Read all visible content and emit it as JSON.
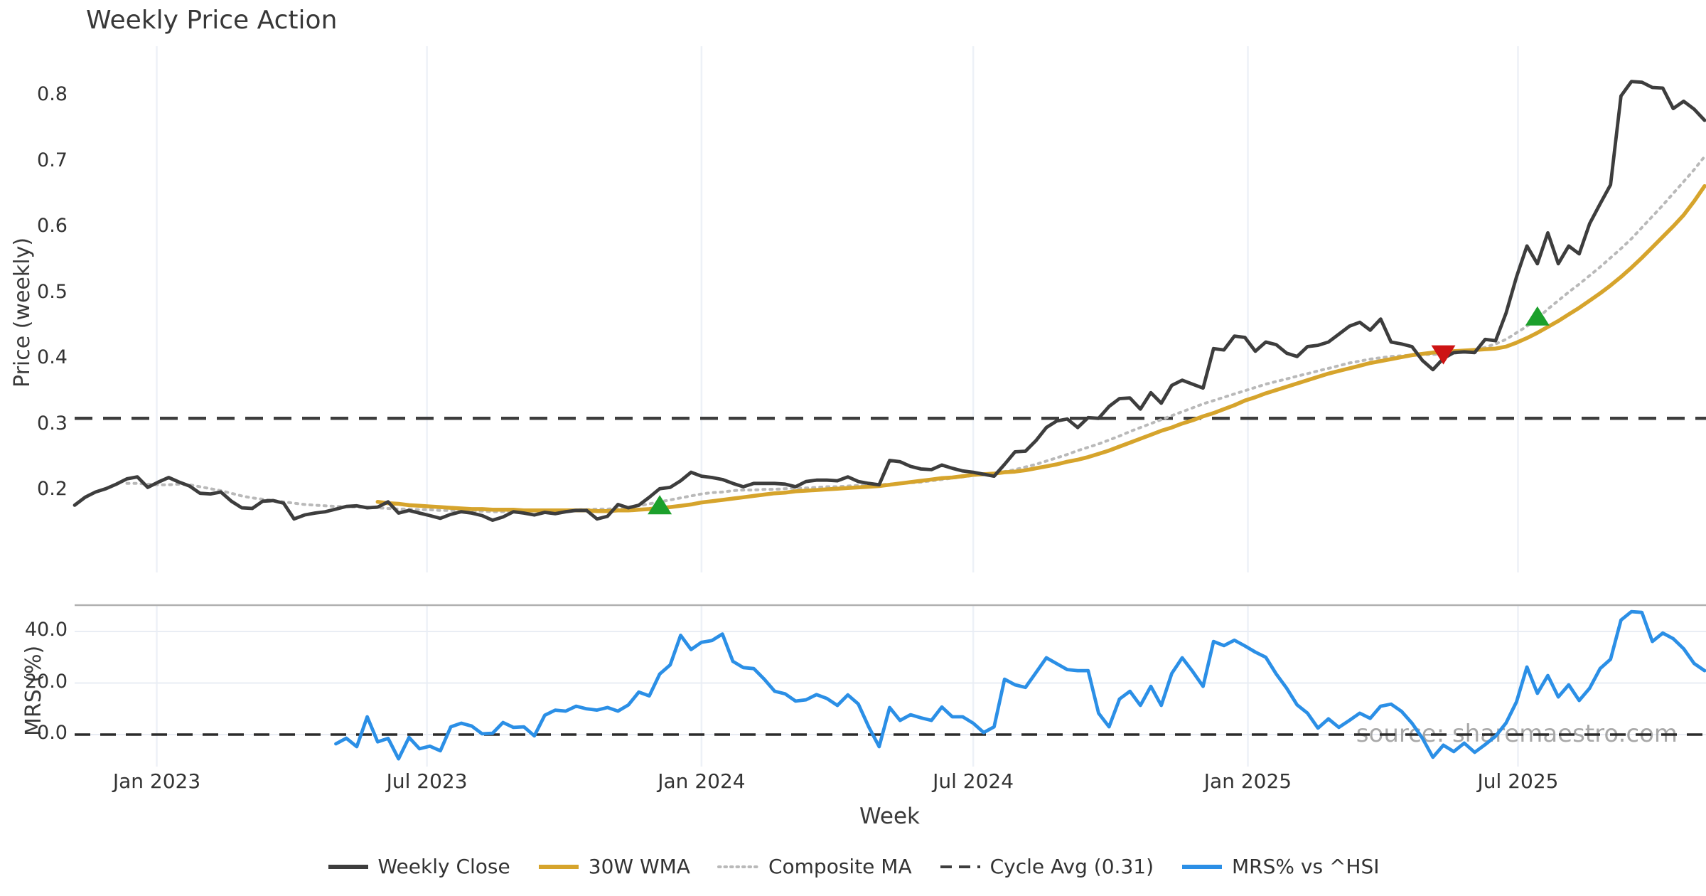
{
  "title": "Weekly Price Action",
  "watermark": "source: sharemaestro.com",
  "colors": {
    "weekly_close": "#3d3d3d",
    "wma30": "#d6a42c",
    "composite": "#b9b9b9",
    "cycle_avg": "#3d3d3d",
    "mrs": "#2b8fe6",
    "buy_marker": "#1ca02c",
    "sell_marker": "#cd1414",
    "grid_vertical": "#edf1f7",
    "grid_horizontal": "#e9edf4",
    "panel_spine": "#b0b0b0",
    "watermark_text": "#999999"
  },
  "legend": [
    {
      "label": "Weekly Close",
      "color": "#3d3d3d",
      "style": "solid",
      "width": 6
    },
    {
      "label": "30W WMA",
      "color": "#d6a42c",
      "style": "solid",
      "width": 6
    },
    {
      "label": "Composite MA",
      "color": "#b9b9b9",
      "style": "dotted",
      "width": 4
    },
    {
      "label": "Cycle Avg (0.31)",
      "color": "#3d3d3d",
      "style": "dashed",
      "width": 4
    },
    {
      "label": "MRS% vs ^HSI",
      "color": "#2b8fe6",
      "style": "solid",
      "width": 6
    }
  ],
  "xlabel": "Week",
  "xticks": [
    {
      "label": "Jan 2023",
      "week": 7.857
    },
    {
      "label": "Jul 2023",
      "week": 33.714
    },
    {
      "label": "Jan 2024",
      "week": 60.0
    },
    {
      "label": "Jul 2024",
      "week": 86.0
    },
    {
      "label": "Jan 2025",
      "week": 112.286
    },
    {
      "label": "Jul 2025",
      "week": 138.143
    }
  ],
  "chart_data": [
    {
      "type": "line",
      "panel": "price",
      "title": "Weekly Price Action",
      "ylabel": "Price (weekly)",
      "yticks": [
        0.8,
        0.7,
        0.6,
        0.5,
        0.4,
        0.3,
        0.2
      ],
      "ylim": [
        0.08,
        0.87
      ],
      "x_unit": "week-index 0..156 (weekly data, ~Nov 2022 to ~Nov 2025)",
      "grid": "vertical-only",
      "series": [
        {
          "name": "Weekly Close",
          "values": [
            0.178,
            0.19,
            0.198,
            0.203,
            0.21,
            0.218,
            0.221,
            0.205,
            0.213,
            0.22,
            0.213,
            0.207,
            0.196,
            0.195,
            0.198,
            0.184,
            0.174,
            0.173,
            0.184,
            0.185,
            0.181,
            0.157,
            0.163,
            0.166,
            0.168,
            0.172,
            0.176,
            0.177,
            0.174,
            0.175,
            0.183,
            0.166,
            0.17,
            0.166,
            0.162,
            0.158,
            0.164,
            0.168,
            0.166,
            0.162,
            0.155,
            0.16,
            0.168,
            0.166,
            0.163,
            0.167,
            0.165,
            0.168,
            0.17,
            0.17,
            0.157,
            0.161,
            0.179,
            0.174,
            0.178,
            0.19,
            0.203,
            0.205,
            0.215,
            0.228,
            0.222,
            0.22,
            0.217,
            0.211,
            0.206,
            0.211,
            0.211,
            0.211,
            0.21,
            0.206,
            0.214,
            0.216,
            0.216,
            0.215,
            0.221,
            0.214,
            0.211,
            0.209,
            0.246,
            0.244,
            0.237,
            0.233,
            0.232,
            0.239,
            0.234,
            0.23,
            0.228,
            0.225,
            0.222,
            0.24,
            0.259,
            0.26,
            0.276,
            0.296,
            0.306,
            0.309,
            0.296,
            0.311,
            0.31,
            0.328,
            0.34,
            0.341,
            0.324,
            0.349,
            0.333,
            0.36,
            0.368,
            0.362,
            0.356,
            0.416,
            0.414,
            0.435,
            0.433,
            0.412,
            0.426,
            0.422,
            0.409,
            0.404,
            0.419,
            0.421,
            0.426,
            0.438,
            0.45,
            0.456,
            0.444,
            0.461,
            0.426,
            0.423,
            0.419,
            0.398,
            0.384,
            0.401,
            0.41,
            0.411,
            0.41,
            0.43,
            0.428,
            0.47,
            0.525,
            0.572,
            0.545,
            0.592,
            0.545,
            0.572,
            0.56,
            0.606,
            0.636,
            0.665,
            0.8,
            0.822,
            0.821,
            0.813,
            0.812,
            0.781,
            0.792,
            0.78,
            0.763
          ]
        },
        {
          "name": "30W WMA",
          "values": [
            null,
            null,
            null,
            null,
            null,
            null,
            null,
            null,
            null,
            null,
            null,
            null,
            null,
            null,
            null,
            null,
            null,
            null,
            null,
            null,
            null,
            null,
            null,
            null,
            null,
            null,
            null,
            null,
            null,
            0.183,
            0.181,
            0.18,
            0.178,
            0.177,
            0.176,
            0.175,
            0.174,
            0.173,
            0.172,
            0.172,
            0.171,
            0.171,
            0.171,
            0.17,
            0.17,
            0.17,
            0.17,
            0.17,
            0.17,
            0.17,
            0.169,
            0.169,
            0.17,
            0.17,
            0.171,
            0.172,
            0.174,
            0.175,
            0.177,
            0.179,
            0.182,
            0.184,
            0.186,
            0.188,
            0.19,
            0.192,
            0.194,
            0.196,
            0.197,
            0.199,
            0.2,
            0.201,
            0.202,
            0.203,
            0.204,
            0.205,
            0.206,
            0.207,
            0.209,
            0.211,
            0.213,
            0.215,
            0.217,
            0.219,
            0.22,
            0.222,
            0.224,
            0.225,
            0.226,
            0.228,
            0.229,
            0.231,
            0.234,
            0.237,
            0.24,
            0.244,
            0.247,
            0.251,
            0.256,
            0.261,
            0.267,
            0.273,
            0.279,
            0.285,
            0.291,
            0.296,
            0.302,
            0.307,
            0.313,
            0.318,
            0.324,
            0.33,
            0.337,
            0.342,
            0.348,
            0.353,
            0.358,
            0.363,
            0.368,
            0.373,
            0.378,
            0.382,
            0.386,
            0.39,
            0.394,
            0.397,
            0.4,
            0.403,
            0.406,
            0.408,
            0.41,
            0.411,
            0.412,
            0.413,
            0.414,
            0.415,
            0.416,
            0.419,
            0.425,
            0.432,
            0.44,
            0.449,
            0.458,
            0.468,
            0.478,
            0.489,
            0.5,
            0.512,
            0.525,
            0.539,
            0.554,
            0.57,
            0.586,
            0.602,
            0.619,
            0.64,
            0.663
          ]
        },
        {
          "name": "Composite MA",
          "values": [
            null,
            null,
            null,
            null,
            null,
            0.211,
            0.211,
            0.21,
            0.209,
            0.209,
            0.21,
            0.209,
            0.206,
            0.203,
            0.2,
            0.196,
            0.192,
            0.189,
            0.187,
            0.185,
            0.183,
            0.181,
            0.179,
            0.178,
            0.177,
            0.176,
            0.176,
            0.175,
            0.175,
            0.174,
            0.173,
            0.172,
            0.172,
            0.171,
            0.171,
            0.17,
            0.17,
            0.169,
            0.169,
            0.169,
            0.168,
            0.168,
            0.168,
            0.169,
            0.169,
            0.169,
            0.17,
            0.17,
            0.171,
            0.171,
            0.172,
            0.172,
            0.173,
            0.175,
            0.177,
            0.18,
            0.183,
            0.186,
            0.189,
            0.192,
            0.195,
            0.197,
            0.198,
            0.2,
            0.201,
            0.201,
            0.202,
            0.202,
            0.203,
            0.204,
            0.204,
            0.205,
            0.206,
            0.206,
            0.207,
            0.208,
            0.208,
            0.209,
            0.21,
            0.211,
            0.212,
            0.213,
            0.215,
            0.217,
            0.219,
            0.221,
            0.223,
            0.225,
            0.227,
            0.229,
            0.232,
            0.236,
            0.24,
            0.245,
            0.25,
            0.255,
            0.261,
            0.266,
            0.271,
            0.277,
            0.283,
            0.29,
            0.296,
            0.302,
            0.308,
            0.314,
            0.32,
            0.326,
            0.332,
            0.337,
            0.342,
            0.347,
            0.352,
            0.357,
            0.362,
            0.366,
            0.37,
            0.374,
            0.378,
            0.382,
            0.386,
            0.39,
            0.394,
            0.397,
            0.4,
            0.402,
            0.404,
            0.405,
            0.406,
            0.407,
            0.407,
            0.408,
            0.409,
            0.411,
            0.414,
            0.418,
            0.423,
            0.43,
            0.44,
            0.45,
            0.462,
            0.476,
            0.489,
            0.502,
            0.514,
            0.527,
            0.54,
            0.554,
            0.568,
            0.583,
            0.6,
            0.617,
            0.634,
            0.652,
            0.67,
            0.688,
            0.708
          ]
        },
        {
          "name": "Cycle Avg (0.31)",
          "type": "hline",
          "value": 0.31
        }
      ],
      "markers": {
        "buy": [
          {
            "week": 56,
            "price": 0.177
          },
          {
            "week": 140,
            "price": 0.464
          }
        ],
        "sell": [
          {
            "week": 131,
            "price": 0.408
          }
        ]
      }
    },
    {
      "type": "line",
      "panel": "mrs",
      "ylabel": "MRS (%)",
      "ytick_labels": [
        "40.0",
        "20.0",
        "0.0"
      ],
      "yticks": [
        40,
        20,
        0
      ],
      "ylim": [
        -13,
        50
      ],
      "zero_line": true,
      "series": [
        {
          "name": "MRS% vs ^HSI",
          "values": [
            null,
            null,
            null,
            null,
            null,
            null,
            null,
            null,
            null,
            null,
            null,
            null,
            null,
            null,
            null,
            null,
            null,
            null,
            null,
            null,
            null,
            null,
            null,
            null,
            null,
            -3.6,
            -1.4,
            -4.7,
            6.9,
            -2.8,
            -1.5,
            -9.4,
            -1.1,
            -5.5,
            -4.5,
            -6.3,
            3.0,
            4.4,
            3.3,
            0.3,
            0.5,
            4.7,
            2.8,
            3.0,
            -0.5,
            7.5,
            9.5,
            9.1,
            11.0,
            10.0,
            9.5,
            10.5,
            9.1,
            11.5,
            16.5,
            15.0,
            23.5,
            27.0,
            38.5,
            33.0,
            35.8,
            36.5,
            39.0,
            28.4,
            26.0,
            25.6,
            21.5,
            16.8,
            15.8,
            13.0,
            13.5,
            15.5,
            14.0,
            11.3,
            15.4,
            11.9,
            3.0,
            -4.7,
            10.5,
            5.5,
            7.7,
            6.5,
            5.5,
            10.7,
            6.9,
            6.9,
            4.4,
            0.8,
            3.0,
            21.5,
            19.3,
            18.3,
            24.0,
            29.8,
            27.5,
            25.2,
            24.8,
            24.8,
            8.3,
            3.0,
            13.8,
            16.8,
            11.3,
            18.7,
            11.3,
            23.7,
            29.8,
            24.5,
            18.7,
            36.1,
            34.5,
            36.6,
            34.4,
            32.0,
            30.0,
            23.5,
            18.0,
            11.5,
            8.3,
            2.5,
            6.1,
            2.8,
            5.5,
            8.3,
            6.3,
            11.0,
            11.8,
            9.0,
            4.4,
            -1.4,
            -8.8,
            -4.1,
            -6.6,
            -3.3,
            -6.9,
            -3.9,
            -0.6,
            4.5,
            12.7,
            26.2,
            16.0,
            22.9,
            14.6,
            19.3,
            13.2,
            18.0,
            25.6,
            29.2,
            44.4,
            47.7,
            47.4,
            36.1,
            39.4,
            37.2,
            33.3,
            27.6,
            24.8
          ]
        }
      ]
    }
  ]
}
